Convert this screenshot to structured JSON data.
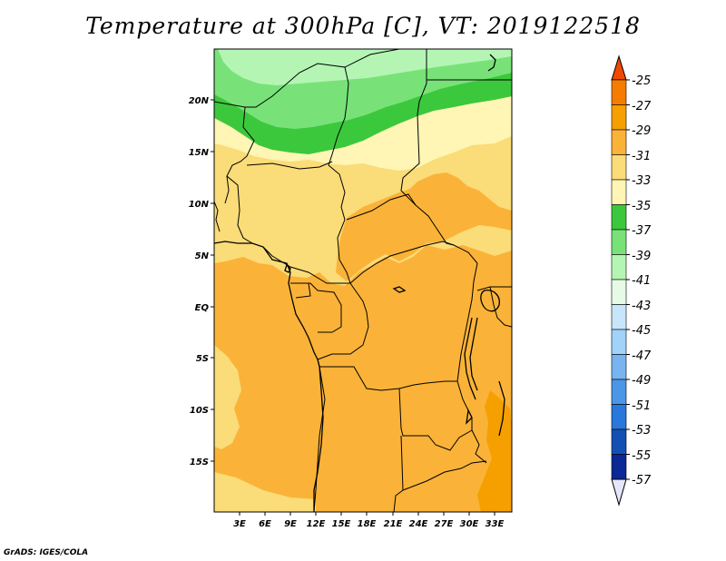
{
  "title": "Temperature at 300hPa [C], VT: 2019122518",
  "credit": "GrADS: IGES/COLA",
  "map": {
    "region": "Central Africa",
    "lat_labels": [
      "20N",
      "15N",
      "10N",
      "5N",
      "EQ",
      "5S",
      "10S",
      "15S"
    ],
    "lon_labels": [
      "3E",
      "6E",
      "9E",
      "12E",
      "15E",
      "18E",
      "21E",
      "24E",
      "27E",
      "30E",
      "33E"
    ]
  },
  "colorbar": {
    "labels": [
      "-25",
      "-27",
      "-29",
      "-31",
      "-33",
      "-35",
      "-37",
      "-39",
      "-41",
      "-43",
      "-45",
      "-47",
      "-49",
      "-51",
      "-53",
      "-55",
      "-57"
    ],
    "colors": [
      "#f04a00",
      "#f57c00",
      "#f5a000",
      "#fab338",
      "#fadc78",
      "#fff5b4",
      "#3cc83c",
      "#78e278",
      "#b4f5b4",
      "#e6fae6",
      "#c8e6fa",
      "#a0d2fa",
      "#78b4f0",
      "#4b96e6",
      "#2a78dc",
      "#1450b4",
      "#0a2896",
      "#000a64",
      "#e6e6fa"
    ]
  }
}
